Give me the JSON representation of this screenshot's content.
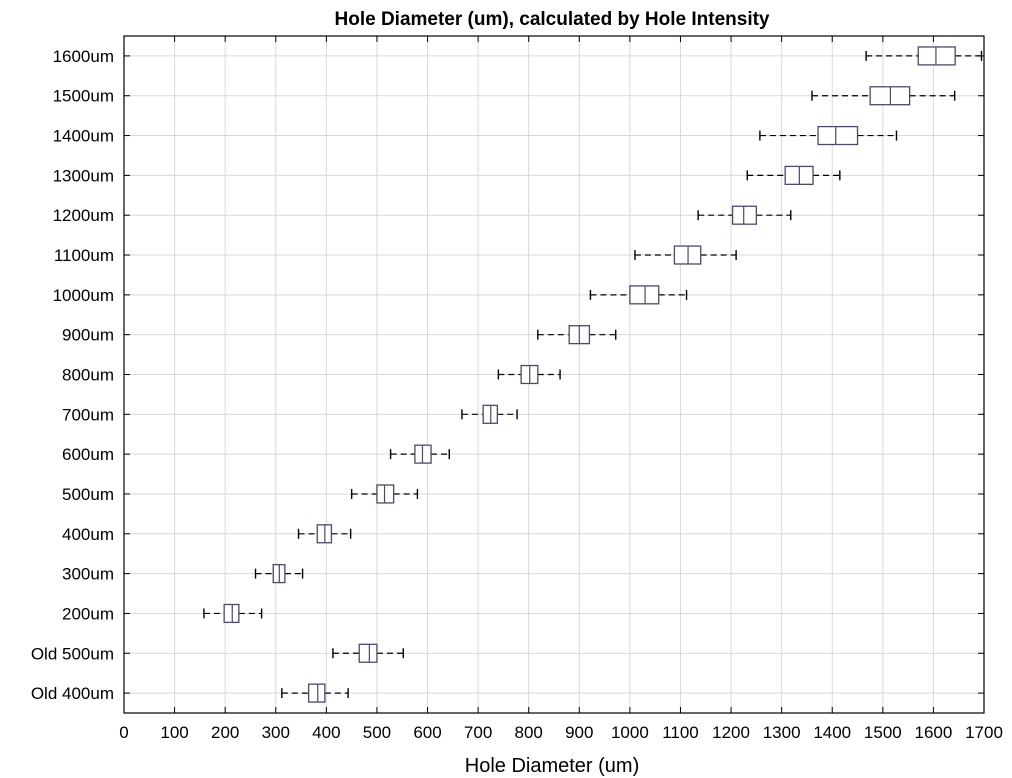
{
  "chart_data": {
    "type": "boxplot",
    "orientation": "horizontal",
    "title": "Hole Diameter (um), calculated by Hole Intensity",
    "xlabel": "Hole Diameter (um)",
    "ylabel": "",
    "xlim": [
      0,
      1700
    ],
    "xticks": [
      0,
      100,
      200,
      300,
      400,
      500,
      600,
      700,
      800,
      900,
      1000,
      1100,
      1200,
      1300,
      1400,
      1500,
      1600,
      1700
    ],
    "grid": true,
    "categories": [
      "Old 400um",
      "Old 500um",
      "200um",
      "300um",
      "400um",
      "500um",
      "600um",
      "700um",
      "800um",
      "900um",
      "1000um",
      "1100um",
      "1200um",
      "1300um",
      "1400um",
      "1500um",
      "1600um"
    ],
    "series": [
      {
        "boxes": [
          {
            "min": 312,
            "q1": 365,
            "median": 383,
            "q3": 397,
            "max": 443
          },
          {
            "min": 413,
            "q1": 465,
            "median": 485,
            "q3": 500,
            "max": 552
          },
          {
            "min": 158,
            "q1": 198,
            "median": 214,
            "q3": 227,
            "max": 272
          },
          {
            "min": 260,
            "q1": 295,
            "median": 307,
            "q3": 318,
            "max": 353
          },
          {
            "min": 345,
            "q1": 382,
            "median": 397,
            "q3": 410,
            "max": 448
          },
          {
            "min": 450,
            "q1": 500,
            "median": 515,
            "q3": 533,
            "max": 580
          },
          {
            "min": 527,
            "q1": 575,
            "median": 590,
            "q3": 607,
            "max": 643
          },
          {
            "min": 668,
            "q1": 710,
            "median": 725,
            "q3": 738,
            "max": 777
          },
          {
            "min": 740,
            "q1": 785,
            "median": 802,
            "q3": 818,
            "max": 862
          },
          {
            "min": 818,
            "q1": 880,
            "median": 900,
            "q3": 920,
            "max": 972
          },
          {
            "min": 922,
            "q1": 1000,
            "median": 1030,
            "q3": 1057,
            "max": 1112
          },
          {
            "min": 1010,
            "q1": 1088,
            "median": 1115,
            "q3": 1140,
            "max": 1210
          },
          {
            "min": 1135,
            "q1": 1203,
            "median": 1225,
            "q3": 1250,
            "max": 1318
          },
          {
            "min": 1232,
            "q1": 1307,
            "median": 1335,
            "q3": 1362,
            "max": 1415
          },
          {
            "min": 1257,
            "q1": 1372,
            "median": 1407,
            "q3": 1450,
            "max": 1527
          },
          {
            "min": 1360,
            "q1": 1475,
            "median": 1515,
            "q3": 1553,
            "max": 1642
          },
          {
            "min": 1467,
            "q1": 1570,
            "median": 1605,
            "q3": 1643,
            "max": 1695
          }
        ]
      }
    ]
  }
}
